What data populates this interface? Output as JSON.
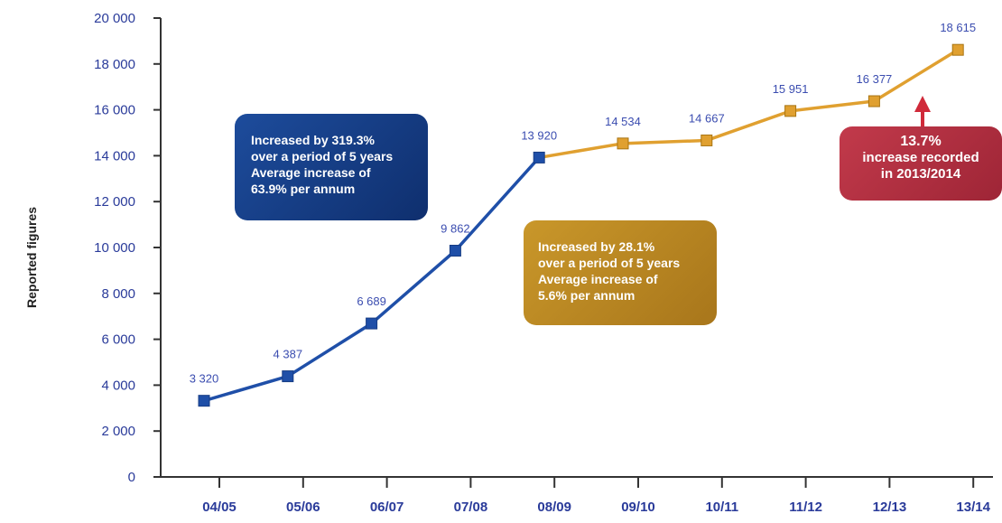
{
  "chart_data": {
    "type": "line",
    "categories": [
      "04/05",
      "05/06",
      "06/07",
      "07/08",
      "08/09",
      "09/10",
      "10/11",
      "11/12",
      "12/13",
      "13/14"
    ],
    "values": [
      3320,
      4387,
      6689,
      9862,
      13920,
      14534,
      14667,
      15951,
      16377,
      18615
    ],
    "value_labels": [
      "3 320",
      "4 387",
      "6 689",
      "9 862",
      "13 920",
      "14 534",
      "14 667",
      "15 951",
      "16 377",
      "18 615"
    ],
    "series": [
      {
        "segment": "first",
        "from": 0,
        "to": 4,
        "color": "#1f4fa8"
      },
      {
        "segment": "second",
        "from": 4,
        "to": 9,
        "color": "#e0a030"
      }
    ],
    "ylabel": "Reported figures",
    "xlabel": "",
    "title": "",
    "ylim": [
      0,
      20000
    ],
    "yticks": [
      0,
      2000,
      4000,
      6000,
      8000,
      10000,
      12000,
      14000,
      16000,
      18000,
      20000
    ],
    "ytick_labels": [
      "0",
      "2 000",
      "4 000",
      "6 000",
      "8 000",
      "10 000",
      "12 000",
      "14 000",
      "16 000",
      "18 000",
      "20 000"
    ],
    "grid": false,
    "annotations": {
      "blue": [
        "Increased by 319.3%",
        "over a period of 5 years",
        "Average increase of",
        "63.9% per annum"
      ],
      "gold": [
        "Increased by 28.1%",
        "over a period of 5 years",
        "Average increase of",
        "5.6% per annum"
      ],
      "red": [
        "13.7%",
        "increase recorded",
        "in 2013/2014"
      ]
    },
    "colors": {
      "axis": "#333333",
      "tick_text": "#2a3b9a",
      "arrow": "#d02a3a"
    }
  }
}
